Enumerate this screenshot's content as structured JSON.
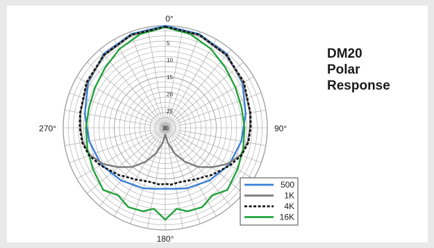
{
  "figure": {
    "title_lines": [
      "DM20",
      "Polar",
      "Response"
    ]
  },
  "colors": {
    "background": "#e9e9e9",
    "card": "#ffffff",
    "grid": "#9a9a9a",
    "text": "#1a1a1a"
  },
  "chart_data": {
    "type": "polar",
    "title": "DM20 Polar Response",
    "angle_unit": "degrees",
    "angle_labels": [
      {
        "angle": 0,
        "text": "0°"
      },
      {
        "angle": 90,
        "text": "90°"
      },
      {
        "angle": 180,
        "text": "180°"
      },
      {
        "angle": 270,
        "text": "270°"
      }
    ],
    "radial_unit": "dB",
    "radial_range": [
      -30,
      0
    ],
    "radial_ticks": [
      -5,
      -10,
      -15,
      -20,
      -25,
      -30
    ],
    "radial_tick_labels": [
      "5",
      "10",
      "15",
      "20",
      "25",
      "30"
    ],
    "angular_gridline_step": 10,
    "grid": true,
    "legend_position": "bottom-right",
    "series": [
      {
        "name": "500",
        "color": "#3a7fd5",
        "style": "solid",
        "points": [
          [
            0,
            0
          ],
          [
            20,
            -0.7
          ],
          [
            40,
            -1.8
          ],
          [
            60,
            -3.8
          ],
          [
            80,
            -6.0
          ],
          [
            90,
            -7.0
          ],
          [
            100,
            -7.3
          ],
          [
            120,
            -8.3
          ],
          [
            140,
            -9.8
          ],
          [
            160,
            -11.1
          ],
          [
            170,
            -11.8
          ],
          [
            180,
            -12.1
          ],
          [
            190,
            -11.8
          ],
          [
            200,
            -11.1
          ],
          [
            220,
            -9.8
          ],
          [
            240,
            -8.3
          ],
          [
            260,
            -7.3
          ],
          [
            270,
            -7.0
          ],
          [
            280,
            -6.0
          ],
          [
            300,
            -3.8
          ],
          [
            320,
            -1.8
          ],
          [
            340,
            -0.7
          ],
          [
            360,
            0
          ]
        ]
      },
      {
        "name": "1K",
        "color": "#7a7a7a",
        "style": "solid",
        "points": [
          [
            0,
            -0.4
          ],
          [
            20,
            -1.0
          ],
          [
            40,
            -2.2
          ],
          [
            60,
            -3.5
          ],
          [
            80,
            -4.7
          ],
          [
            90,
            -5.1
          ],
          [
            100,
            -5.4
          ],
          [
            110,
            -6.5
          ],
          [
            120,
            -8.8
          ],
          [
            130,
            -12.0
          ],
          [
            140,
            -15.0
          ],
          [
            150,
            -18.5
          ],
          [
            160,
            -22.0
          ],
          [
            170,
            -25.5
          ],
          [
            180,
            -28.0
          ],
          [
            190,
            -25.5
          ],
          [
            200,
            -22.0
          ],
          [
            210,
            -18.5
          ],
          [
            220,
            -15.0
          ],
          [
            230,
            -12.0
          ],
          [
            240,
            -8.8
          ],
          [
            250,
            -6.5
          ],
          [
            260,
            -5.4
          ],
          [
            270,
            -5.1
          ],
          [
            280,
            -4.7
          ],
          [
            300,
            -3.5
          ],
          [
            320,
            -2.2
          ],
          [
            340,
            -1.0
          ],
          [
            360,
            -0.4
          ]
        ]
      },
      {
        "name": "4K",
        "color": "#111111",
        "style": "dashed",
        "points": [
          [
            0,
            -0.3
          ],
          [
            20,
            -0.9
          ],
          [
            40,
            -2.0
          ],
          [
            60,
            -3.3
          ],
          [
            80,
            -4.6
          ],
          [
            90,
            -4.9
          ],
          [
            100,
            -5.2
          ],
          [
            110,
            -6.2
          ],
          [
            120,
            -8.0
          ],
          [
            135,
            -10.5
          ],
          [
            150,
            -12.5
          ],
          [
            165,
            -13.5
          ],
          [
            175,
            -13.2
          ],
          [
            180,
            -13.6
          ],
          [
            185,
            -13.2
          ],
          [
            195,
            -13.5
          ],
          [
            210,
            -12.5
          ],
          [
            225,
            -10.5
          ],
          [
            240,
            -8.0
          ],
          [
            250,
            -6.2
          ],
          [
            260,
            -5.2
          ],
          [
            270,
            -4.9
          ],
          [
            280,
            -4.6
          ],
          [
            300,
            -3.3
          ],
          [
            320,
            -2.0
          ],
          [
            340,
            -0.9
          ],
          [
            360,
            -0.3
          ]
        ]
      },
      {
        "name": "16K",
        "color": "#1fa23a",
        "style": "solid",
        "points": [
          [
            0,
            -0.4
          ],
          [
            15,
            -1.5
          ],
          [
            30,
            -3.2
          ],
          [
            45,
            -5.0
          ],
          [
            60,
            -6.2
          ],
          [
            75,
            -6.8
          ],
          [
            90,
            -6.7
          ],
          [
            105,
            -6.3
          ],
          [
            120,
            -5.5
          ],
          [
            135,
            -4.2
          ],
          [
            145,
            -5.8
          ],
          [
            155,
            -4.3
          ],
          [
            165,
            -4.6
          ],
          [
            172,
            -6.0
          ],
          [
            180,
            -3.0
          ],
          [
            188,
            -6.0
          ],
          [
            195,
            -4.6
          ],
          [
            205,
            -4.3
          ],
          [
            215,
            -5.8
          ],
          [
            225,
            -4.2
          ],
          [
            240,
            -5.5
          ],
          [
            255,
            -6.3
          ],
          [
            270,
            -6.7
          ],
          [
            285,
            -6.8
          ],
          [
            300,
            -6.2
          ],
          [
            315,
            -5.0
          ],
          [
            330,
            -3.2
          ],
          [
            345,
            -1.5
          ],
          [
            360,
            -0.4
          ]
        ]
      }
    ]
  }
}
